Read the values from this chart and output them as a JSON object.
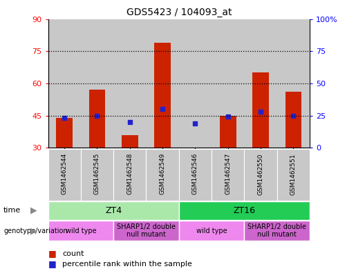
{
  "title": "GDS5423 / 104093_at",
  "samples": [
    "GSM1462544",
    "GSM1462545",
    "GSM1462548",
    "GSM1462549",
    "GSM1462546",
    "GSM1462547",
    "GSM1462550",
    "GSM1462551"
  ],
  "count_values": [
    44,
    57,
    36,
    79,
    30,
    45,
    65,
    56
  ],
  "count_base": 30,
  "percentile_values": [
    23,
    25,
    20,
    30,
    19,
    24,
    28,
    25
  ],
  "ylim_left": [
    30,
    90
  ],
  "ylim_right": [
    0,
    100
  ],
  "yticks_left": [
    30,
    45,
    60,
    75,
    90
  ],
  "yticks_right": [
    0,
    25,
    50,
    75,
    100
  ],
  "ytick_labels_left": [
    "30",
    "45",
    "60",
    "75",
    "90"
  ],
  "ytick_labels_right": [
    "0",
    "25",
    "50",
    "75",
    "100%"
  ],
  "hlines": [
    45,
    60,
    75
  ],
  "bar_color": "#cc2200",
  "dot_color": "#2222cc",
  "bg_color": "#c8c8c8",
  "time_groups": [
    {
      "label": "ZT4",
      "start": 0,
      "end": 4,
      "color": "#aae8aa"
    },
    {
      "label": "ZT16",
      "start": 4,
      "end": 8,
      "color": "#22cc55"
    }
  ],
  "genotype_groups": [
    {
      "label": "wild type",
      "start": 0,
      "end": 2,
      "color": "#ee88ee"
    },
    {
      "label": "SHARP1/2 double\nnull mutant",
      "start": 2,
      "end": 4,
      "color": "#cc66cc"
    },
    {
      "label": "wild type",
      "start": 4,
      "end": 6,
      "color": "#ee88ee"
    },
    {
      "label": "SHARP1/2 double\nnull mutant",
      "start": 6,
      "end": 8,
      "color": "#cc66cc"
    }
  ],
  "legend_count_label": "count",
  "legend_pct_label": "percentile rank within the sample",
  "xlabel_time": "time",
  "xlabel_genotype": "genotype/variation",
  "fig_width": 5.15,
  "fig_height": 3.93,
  "dpi": 100
}
